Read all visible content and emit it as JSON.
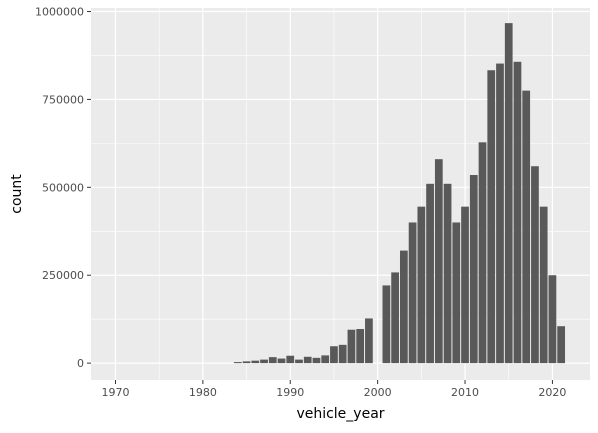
{
  "chart_data": {
    "type": "bar",
    "title": "",
    "xlabel": "vehicle_year",
    "ylabel": "count",
    "xlim": [
      1967.2,
      2024.3
    ],
    "ylim": [
      -48000,
      1010000
    ],
    "x_ticks": [
      1970,
      1980,
      1990,
      2000,
      2010,
      2020
    ],
    "x_tick_labels": [
      "1970",
      "1980",
      "1990",
      "2000",
      "2010",
      "2020"
    ],
    "y_ticks": [
      0,
      250000,
      500000,
      750000,
      1000000
    ],
    "y_tick_labels": [
      "0",
      "250000",
      "500000",
      "750000",
      "1000000"
    ],
    "grid": true,
    "bar_color": "#595959",
    "panel_color": "#ebebeb",
    "grid_color": "#ffffff",
    "bars": [
      {
        "x": 1984,
        "y": 3000
      },
      {
        "x": 1985,
        "y": 5000
      },
      {
        "x": 1986,
        "y": 7000
      },
      {
        "x": 1987,
        "y": 10000
      },
      {
        "x": 1988,
        "y": 17000
      },
      {
        "x": 1989,
        "y": 13000
      },
      {
        "x": 1990,
        "y": 21000
      },
      {
        "x": 1991,
        "y": 10000
      },
      {
        "x": 1992,
        "y": 18000
      },
      {
        "x": 1993,
        "y": 15000
      },
      {
        "x": 1994,
        "y": 22000
      },
      {
        "x": 1995,
        "y": 48000
      },
      {
        "x": 1996,
        "y": 52000
      },
      {
        "x": 1997,
        "y": 95000
      },
      {
        "x": 1998,
        "y": 97000
      },
      {
        "x": 1999,
        "y": 127000
      },
      {
        "x": 2001,
        "y": 221000
      },
      {
        "x": 2002,
        "y": 258000
      },
      {
        "x": 2003,
        "y": 320000
      },
      {
        "x": 2004,
        "y": 400000
      },
      {
        "x": 2005,
        "y": 445000
      },
      {
        "x": 2006,
        "y": 510000
      },
      {
        "x": 2007,
        "y": 580000
      },
      {
        "x": 2008,
        "y": 510000
      },
      {
        "x": 2009,
        "y": 400000
      },
      {
        "x": 2010,
        "y": 445000
      },
      {
        "x": 2011,
        "y": 535000
      },
      {
        "x": 2012,
        "y": 628000
      },
      {
        "x": 2013,
        "y": 833000
      },
      {
        "x": 2014,
        "y": 852000
      },
      {
        "x": 2015,
        "y": 967000
      },
      {
        "x": 2016,
        "y": 857000
      },
      {
        "x": 2017,
        "y": 775000
      },
      {
        "x": 2018,
        "y": 560000
      },
      {
        "x": 2019,
        "y": 445000
      },
      {
        "x": 2020,
        "y": 250000
      },
      {
        "x": 2021,
        "y": 105000
      }
    ]
  }
}
